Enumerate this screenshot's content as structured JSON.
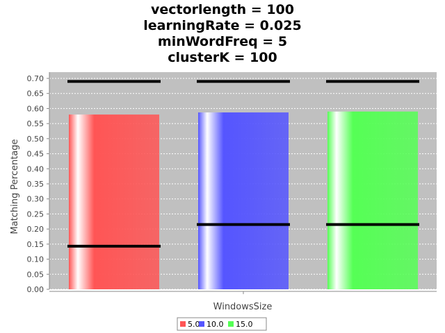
{
  "chart_data": {
    "type": "bar",
    "title": [
      "vectorlength = 100",
      "learningRate = 0.025",
      "minWordFreq = 5",
      "clusterK = 100"
    ],
    "xlabel": "WindowsSize",
    "ylabel": "Matching Percentage",
    "ylim": [
      0,
      0.7
    ],
    "yticks": [
      "0.00",
      "0.05",
      "0.10",
      "0.15",
      "0.20",
      "0.25",
      "0.30",
      "0.35",
      "0.40",
      "0.45",
      "0.50",
      "0.55",
      "0.60",
      "0.65",
      "0.70"
    ],
    "grid": true,
    "legend_position": "bottom",
    "series": [
      {
        "name": "5.0",
        "color": "#ff5555",
        "value": 0.58,
        "min": 0.143,
        "max": 0.69
      },
      {
        "name": "10.0",
        "color": "#5555ff",
        "value": 0.587,
        "min": 0.215,
        "max": 0.69
      },
      {
        "name": "15.0",
        "color": "#55ff55",
        "value": 0.59,
        "min": 0.215,
        "max": 0.69
      }
    ]
  }
}
